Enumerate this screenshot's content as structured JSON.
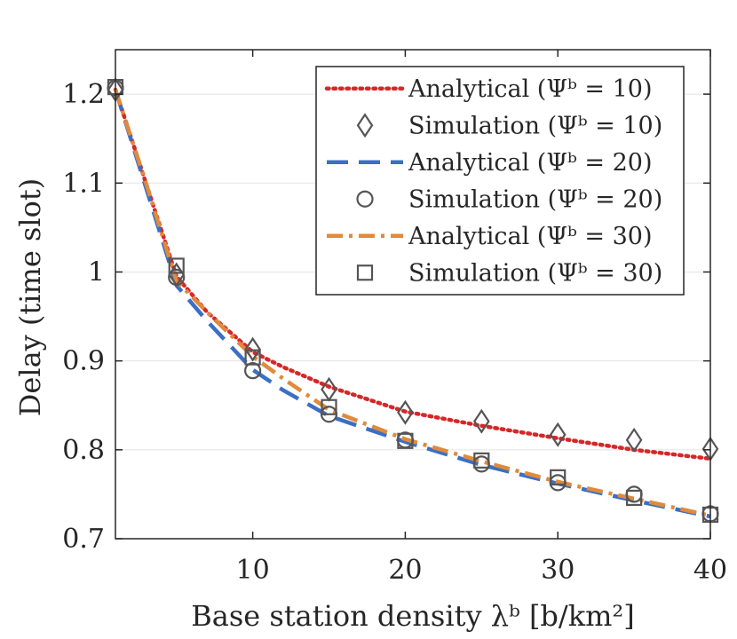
{
  "chart_data": {
    "type": "line",
    "title": "",
    "xlabel": "Base station density λᵇ [b/km²]",
    "ylabel": "Delay (time slot)",
    "xlim": [
      1,
      40
    ],
    "ylim": [
      0.7,
      1.25
    ],
    "grid": "horizontal",
    "x_ticks": [
      10,
      20,
      30,
      40
    ],
    "x_tick_labels": [
      "10",
      "20",
      "30",
      "40"
    ],
    "y_ticks": [
      0.7,
      0.8,
      0.9,
      1.0,
      1.1,
      1.2
    ],
    "y_tick_labels": [
      "0.7",
      "0.8",
      "0.9",
      "1",
      "1.1",
      "1.2"
    ],
    "legend_position": "top-right",
    "colors": {
      "red": "#d62728",
      "blue": "#3a6fc4",
      "orange": "#e08a3c",
      "marker": "#555555"
    },
    "series": [
      {
        "name": "Analytical (Ψᵇ = 10)",
        "kind": "line",
        "style": "dotted",
        "color": "#d62728",
        "x": [
          1,
          3,
          5,
          7,
          10,
          12,
          15,
          20,
          25,
          30,
          35,
          40
        ],
        "y": [
          1.205,
          1.1,
          0.995,
          0.955,
          0.91,
          0.893,
          0.871,
          0.843,
          0.827,
          0.813,
          0.8,
          0.79
        ]
      },
      {
        "name": "Simulation (Ψᵇ = 10)",
        "kind": "marker",
        "marker": "diamond",
        "color": "#555555",
        "x": [
          1,
          5,
          10,
          15,
          20,
          25,
          30,
          35,
          40
        ],
        "y": [
          1.205,
          0.997,
          0.913,
          0.868,
          0.842,
          0.832,
          0.817,
          0.811,
          0.801
        ]
      },
      {
        "name": "Analytical (Ψᵇ = 20)",
        "kind": "line",
        "style": "dashed",
        "color": "#3a6fc4",
        "x": [
          1,
          3,
          5,
          7,
          10,
          12,
          15,
          20,
          25,
          30,
          35,
          40
        ],
        "y": [
          1.205,
          1.095,
          0.985,
          0.945,
          0.89,
          0.867,
          0.838,
          0.809,
          0.783,
          0.762,
          0.743,
          0.725
        ]
      },
      {
        "name": "Simulation (Ψᵇ = 20)",
        "kind": "marker",
        "marker": "circle",
        "color": "#555555",
        "x": [
          1,
          5,
          10,
          15,
          20,
          25,
          30,
          35,
          40
        ],
        "y": [
          1.207,
          0.994,
          0.889,
          0.84,
          0.811,
          0.784,
          0.763,
          0.75,
          0.728
        ]
      },
      {
        "name": "Analytical (Ψᵇ = 30)",
        "kind": "line",
        "style": "dashdot",
        "color": "#e08a3c",
        "x": [
          1,
          3,
          5,
          7,
          10,
          12,
          15,
          20,
          25,
          30,
          35,
          40
        ],
        "y": [
          1.205,
          1.1,
          0.99,
          0.955,
          0.905,
          0.88,
          0.845,
          0.812,
          0.787,
          0.764,
          0.745,
          0.726
        ]
      },
      {
        "name": "Simulation (Ψᵇ = 30)",
        "kind": "marker",
        "marker": "square",
        "color": "#555555",
        "x": [
          1,
          5,
          10,
          15,
          20,
          25,
          30,
          35,
          40
        ],
        "y": [
          1.208,
          1.007,
          0.904,
          0.848,
          0.81,
          0.788,
          0.769,
          0.746,
          0.727
        ]
      }
    ]
  }
}
